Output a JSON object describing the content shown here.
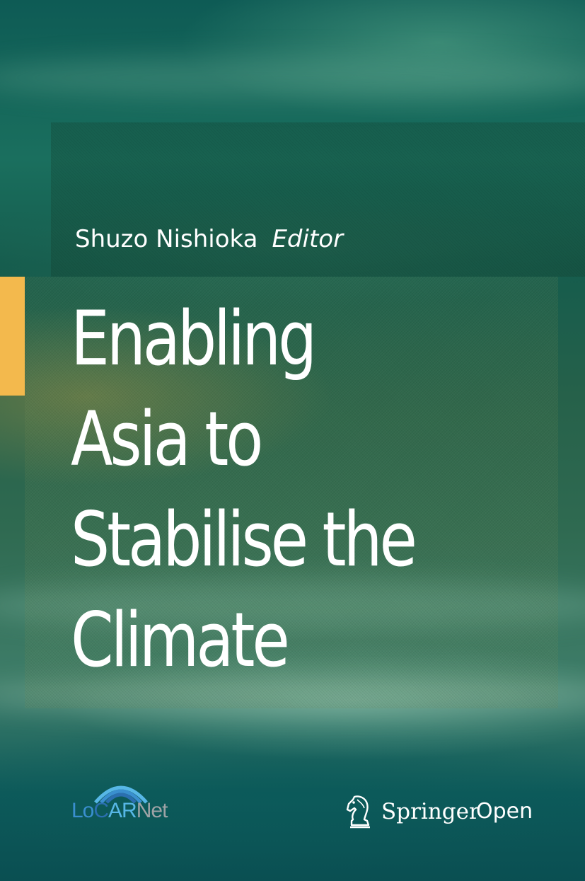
{
  "cover": {
    "editor_name": "Shuzo Nishioka",
    "editor_role": "Editor",
    "title_lines": [
      "Enabling",
      "Asia to",
      "Stabilise the",
      "Climate"
    ],
    "accent_color": "#f3b94d"
  },
  "logos": {
    "locarnet": {
      "part_lo": "Lo",
      "part_c": "C",
      "part_ar": "AR",
      "part_net": "Net",
      "icon": "arc-waves-icon",
      "colors": {
        "lo": "#3a8fcf",
        "c": "#2b6fb0",
        "ar": "#57b7e6",
        "net": "#9ea3a6"
      }
    },
    "publisher": {
      "name": "Springer",
      "suffix": "Open",
      "icon": "chess-knight-icon"
    }
  }
}
